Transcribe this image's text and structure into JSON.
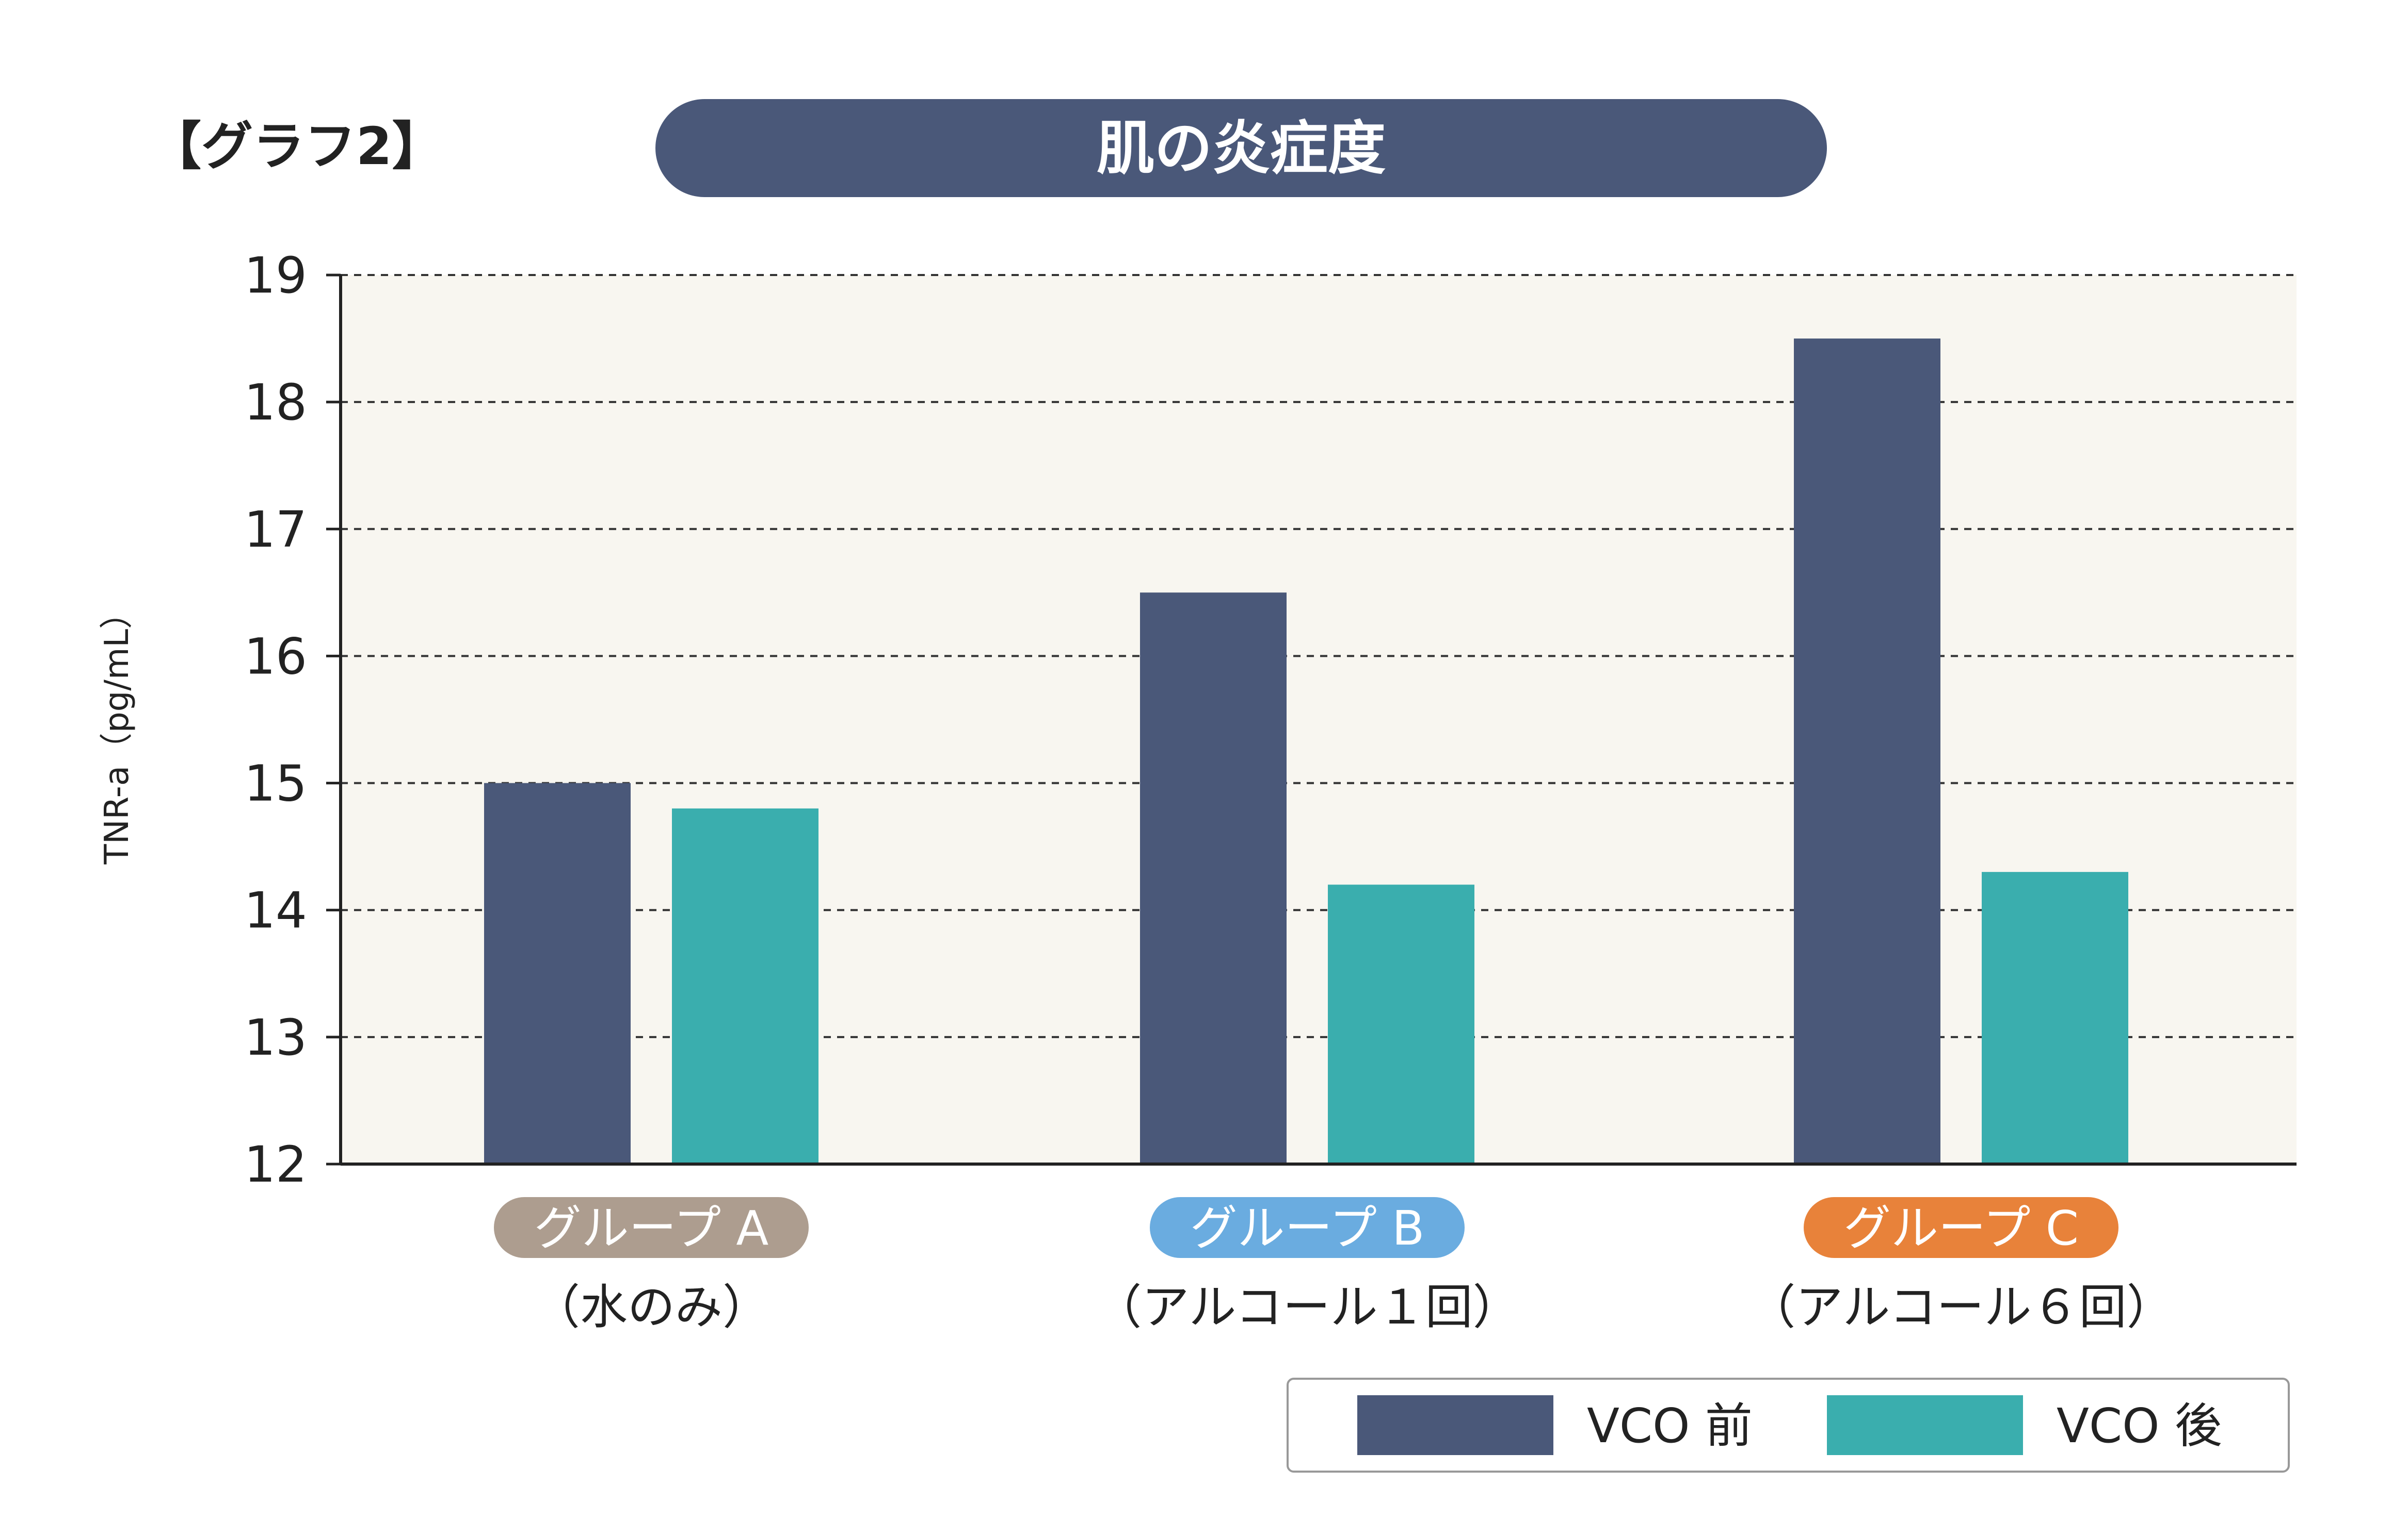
{
  "label": "【グラフ2】",
  "chart_data": {
    "type": "bar",
    "title": "肌の炎症度",
    "ylabel": "TNR-a（pg/mL）",
    "xlabel": "",
    "ylim": [
      12,
      19
    ],
    "yticks": [
      12,
      13,
      14,
      15,
      16,
      17,
      18,
      19
    ],
    "grid": true,
    "legend_position": "bottom-right",
    "categories": [
      {
        "badge": "グループ A",
        "sub": "（水のみ）",
        "color": "#ad9d8f"
      },
      {
        "badge": "グループ B",
        "sub": "（アルコール１回）",
        "color": "#6aace0"
      },
      {
        "badge": "グループ C",
        "sub": "（アルコール６回）",
        "color": "#e8823a"
      }
    ],
    "series": [
      {
        "name": "VCO 前",
        "color": "#4a5879",
        "values": [
          15.0,
          16.5,
          18.5
        ]
      },
      {
        "name": "VCO 後",
        "color": "#3aaeae",
        "values": [
          14.8,
          14.2,
          14.3
        ]
      }
    ]
  }
}
